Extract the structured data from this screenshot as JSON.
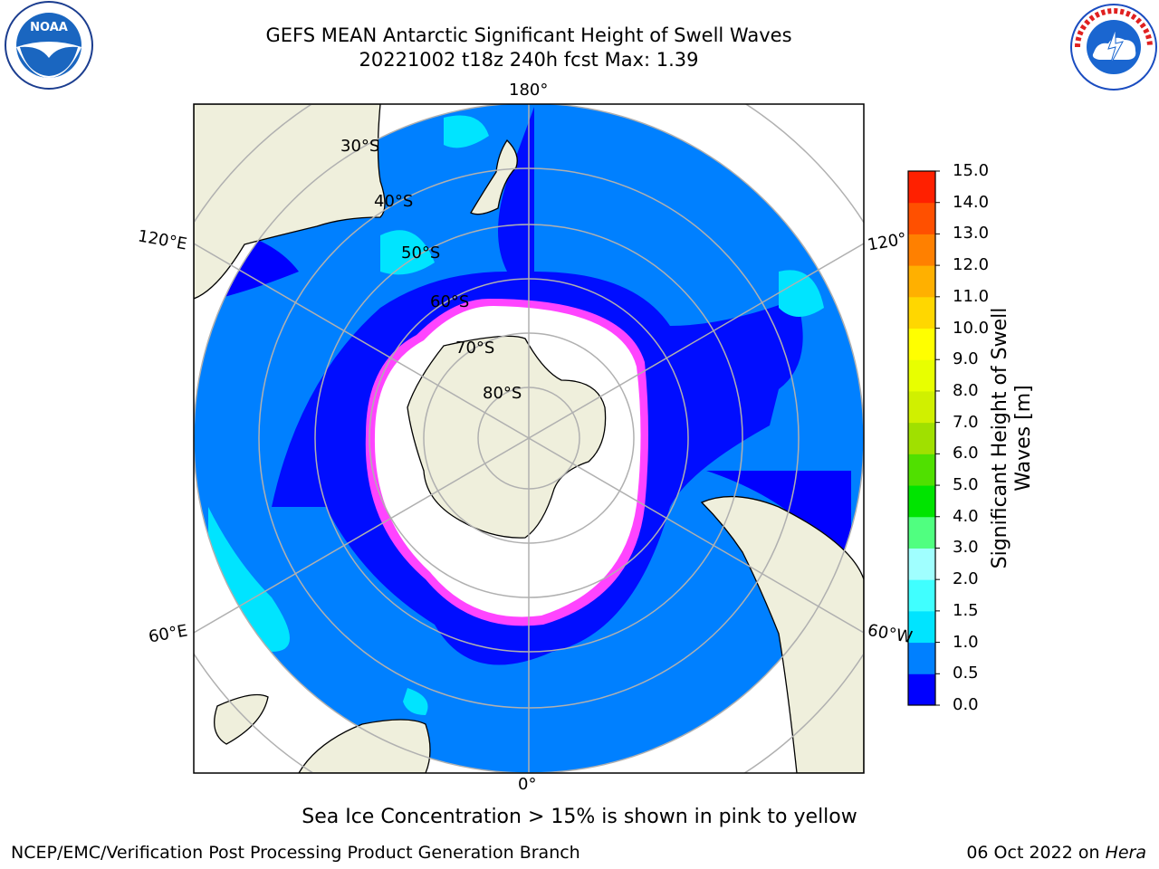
{
  "title": {
    "line1": "GEFS MEAN Antarctic Significant Height of Swell Waves",
    "line2": "20221002 t18z 240h fcst   Max: 1.39"
  },
  "logos": {
    "left": {
      "icon": "noaa-logo",
      "text": "NOAA"
    },
    "right": {
      "icon": "national-weather-service-logo",
      "text": "NATIONAL WEATHER SERVICE"
    }
  },
  "map": {
    "projection": "south-polar-stereographic",
    "longitude_labels": {
      "top": "180°",
      "left": "120°E",
      "right": "120°",
      "bottom": "0°",
      "lower_left": "60°E",
      "lower_right": "60°W"
    },
    "latitude_labels": [
      "30°S",
      "40°S",
      "50°S",
      "60°S",
      "70°S",
      "80°S"
    ],
    "colors": {
      "land": "#efefdc",
      "ocean_low": "#0080ff",
      "ocean_lowest": "#0000ff",
      "ocean_mid": "#00ffff",
      "ice_mask": "#ffffff",
      "ice_edge": "#ff44ff",
      "gridline": "#b0b0b0"
    }
  },
  "colorbar": {
    "label_line1": "Significant Height of Swell",
    "label_line2": "Waves [m]",
    "ticks": [
      "0.0",
      "0.5",
      "1.0",
      "1.5",
      "2.0",
      "3.0",
      "4.0",
      "5.0",
      "6.0",
      "7.0",
      "8.0",
      "9.0",
      "10.0",
      "11.0",
      "12.0",
      "13.0",
      "14.0",
      "15.0"
    ],
    "colors": [
      "#0000ff",
      "#0080ff",
      "#00e4ff",
      "#40ffff",
      "#a0ffff",
      "#50ff80",
      "#00e400",
      "#50e000",
      "#a0e000",
      "#d0f000",
      "#e8ff00",
      "#ffff00",
      "#ffd700",
      "#ffb000",
      "#ff8000",
      "#ff5000",
      "#ff2000",
      "#ff0000"
    ]
  },
  "annotation": "Sea Ice Concentration > 15% is shown in pink to yellow",
  "footer": {
    "left": "NCEP/EMC/Verification Post Processing Product Generation Branch",
    "right_date": "06 Oct 2022 on ",
    "right_host": "Hera"
  }
}
